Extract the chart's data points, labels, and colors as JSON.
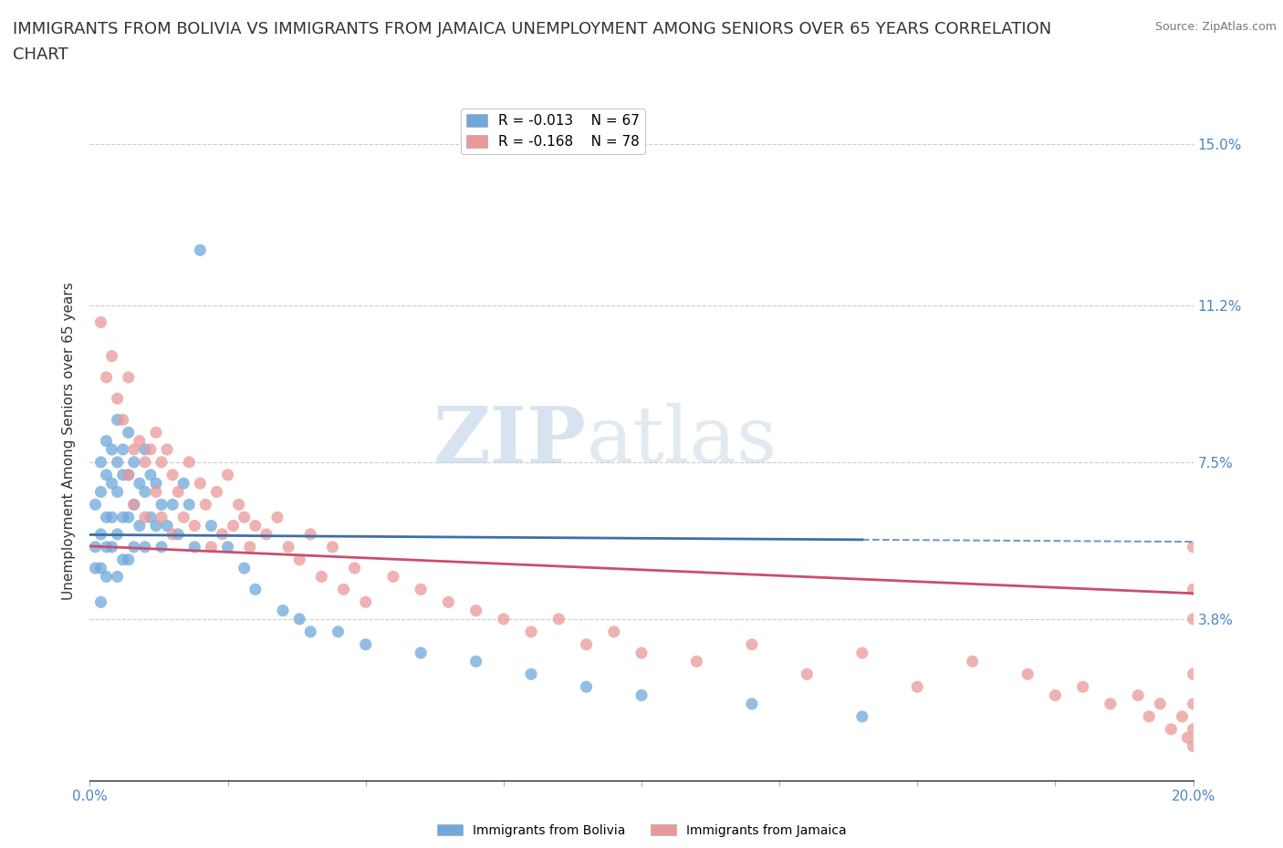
{
  "title": "IMMIGRANTS FROM BOLIVIA VS IMMIGRANTS FROM JAMAICA UNEMPLOYMENT AMONG SENIORS OVER 65 YEARS CORRELATION\nCHART",
  "source": "Source: ZipAtlas.com",
  "ylabel": "Unemployment Among Seniors over 65 years",
  "xlim": [
    0.0,
    0.2
  ],
  "ylim": [
    0.0,
    0.16
  ],
  "xticks": [
    0.0,
    0.025,
    0.05,
    0.075,
    0.1,
    0.125,
    0.15,
    0.175,
    0.2
  ],
  "ytick_positions": [
    0.038,
    0.075,
    0.112,
    0.15
  ],
  "ytick_labels": [
    "3.8%",
    "7.5%",
    "11.2%",
    "15.0%"
  ],
  "bolivia_color": "#6fa8dc",
  "jamaica_color": "#ea9999",
  "bolivia_line_color": "#3d6fa8",
  "jamaica_line_color": "#c94f6a",
  "legend_r_bolivia": "R = -0.013",
  "legend_n_bolivia": "N = 67",
  "legend_r_jamaica": "R = -0.168",
  "legend_n_jamaica": "N = 78",
  "bolivia_scatter_x": [
    0.001,
    0.001,
    0.001,
    0.002,
    0.002,
    0.002,
    0.002,
    0.002,
    0.003,
    0.003,
    0.003,
    0.003,
    0.003,
    0.004,
    0.004,
    0.004,
    0.004,
    0.005,
    0.005,
    0.005,
    0.005,
    0.005,
    0.006,
    0.006,
    0.006,
    0.006,
    0.007,
    0.007,
    0.007,
    0.007,
    0.008,
    0.008,
    0.008,
    0.009,
    0.009,
    0.01,
    0.01,
    0.01,
    0.011,
    0.011,
    0.012,
    0.012,
    0.013,
    0.013,
    0.014,
    0.015,
    0.016,
    0.017,
    0.018,
    0.019,
    0.02,
    0.022,
    0.025,
    0.028,
    0.03,
    0.035,
    0.038,
    0.04,
    0.045,
    0.05,
    0.06,
    0.07,
    0.08,
    0.09,
    0.1,
    0.12,
    0.14
  ],
  "bolivia_scatter_y": [
    0.065,
    0.055,
    0.05,
    0.075,
    0.068,
    0.058,
    0.05,
    0.042,
    0.08,
    0.072,
    0.062,
    0.055,
    0.048,
    0.078,
    0.07,
    0.062,
    0.055,
    0.085,
    0.075,
    0.068,
    0.058,
    0.048,
    0.078,
    0.072,
    0.062,
    0.052,
    0.082,
    0.072,
    0.062,
    0.052,
    0.075,
    0.065,
    0.055,
    0.07,
    0.06,
    0.078,
    0.068,
    0.055,
    0.072,
    0.062,
    0.07,
    0.06,
    0.065,
    0.055,
    0.06,
    0.065,
    0.058,
    0.07,
    0.065,
    0.055,
    0.125,
    0.06,
    0.055,
    0.05,
    0.045,
    0.04,
    0.038,
    0.035,
    0.035,
    0.032,
    0.03,
    0.028,
    0.025,
    0.022,
    0.02,
    0.018,
    0.015
  ],
  "jamaica_scatter_x": [
    0.002,
    0.003,
    0.004,
    0.005,
    0.006,
    0.007,
    0.007,
    0.008,
    0.008,
    0.009,
    0.01,
    0.01,
    0.011,
    0.012,
    0.012,
    0.013,
    0.013,
    0.014,
    0.015,
    0.015,
    0.016,
    0.017,
    0.018,
    0.019,
    0.02,
    0.021,
    0.022,
    0.023,
    0.024,
    0.025,
    0.026,
    0.027,
    0.028,
    0.029,
    0.03,
    0.032,
    0.034,
    0.036,
    0.038,
    0.04,
    0.042,
    0.044,
    0.046,
    0.048,
    0.05,
    0.055,
    0.06,
    0.065,
    0.07,
    0.075,
    0.08,
    0.085,
    0.09,
    0.095,
    0.1,
    0.11,
    0.12,
    0.13,
    0.14,
    0.15,
    0.16,
    0.17,
    0.175,
    0.18,
    0.185,
    0.19,
    0.192,
    0.194,
    0.196,
    0.198,
    0.199,
    0.2,
    0.2,
    0.2,
    0.2,
    0.2,
    0.2,
    0.2
  ],
  "jamaica_scatter_y": [
    0.108,
    0.095,
    0.1,
    0.09,
    0.085,
    0.095,
    0.072,
    0.078,
    0.065,
    0.08,
    0.075,
    0.062,
    0.078,
    0.082,
    0.068,
    0.075,
    0.062,
    0.078,
    0.072,
    0.058,
    0.068,
    0.062,
    0.075,
    0.06,
    0.07,
    0.065,
    0.055,
    0.068,
    0.058,
    0.072,
    0.06,
    0.065,
    0.062,
    0.055,
    0.06,
    0.058,
    0.062,
    0.055,
    0.052,
    0.058,
    0.048,
    0.055,
    0.045,
    0.05,
    0.042,
    0.048,
    0.045,
    0.042,
    0.04,
    0.038,
    0.035,
    0.038,
    0.032,
    0.035,
    0.03,
    0.028,
    0.032,
    0.025,
    0.03,
    0.022,
    0.028,
    0.025,
    0.02,
    0.022,
    0.018,
    0.02,
    0.015,
    0.018,
    0.012,
    0.015,
    0.01,
    0.055,
    0.045,
    0.038,
    0.025,
    0.018,
    0.012,
    0.008
  ],
  "watermark_zip": "ZIP",
  "watermark_atlas": "atlas",
  "background_color": "#ffffff",
  "grid_color": "#cccccc",
  "title_fontsize": 13,
  "axis_label_fontsize": 11,
  "tick_fontsize": 11,
  "legend_fontsize": 11
}
